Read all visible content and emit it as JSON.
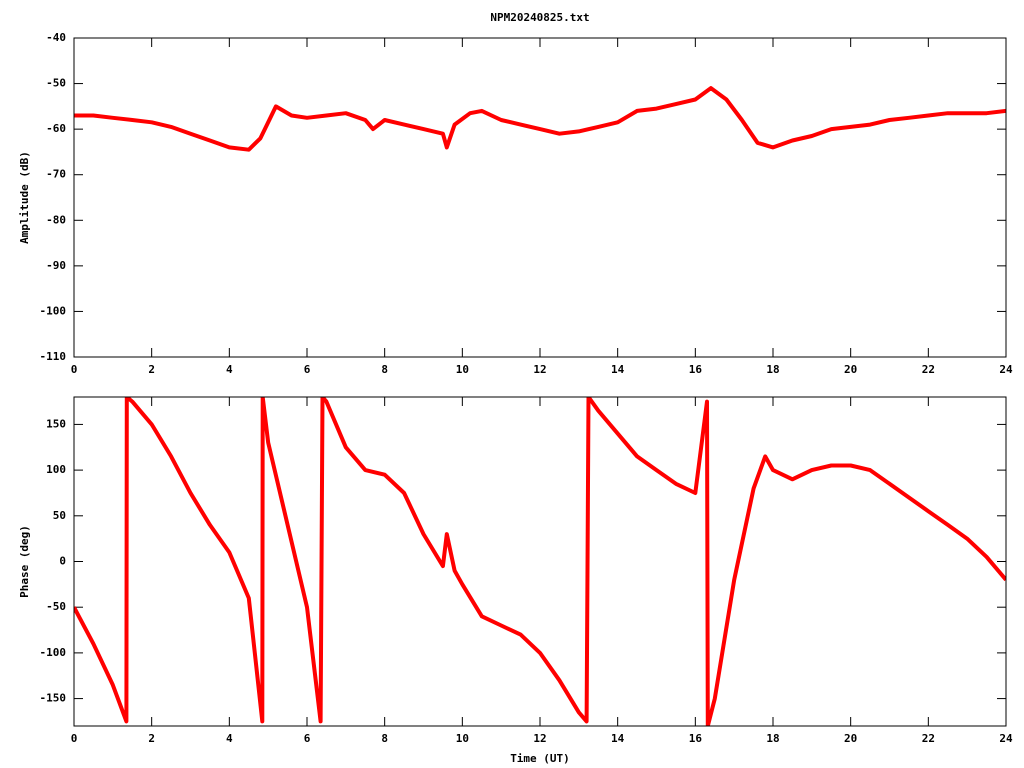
{
  "chart_data": [
    {
      "type": "line",
      "title": "NPM20240825.txt",
      "y_label": "Amplitude (dB)",
      "color": "#ff0000",
      "x": [
        0,
        0.5,
        1,
        1.5,
        2,
        2.5,
        3,
        3.5,
        4,
        4.5,
        4.8,
        5.2,
        5.6,
        6,
        6.5,
        7,
        7.5,
        7.7,
        8,
        8.5,
        9,
        9.5,
        9.6,
        9.8,
        10.2,
        10.5,
        11,
        11.5,
        12,
        12.5,
        13,
        13.5,
        14,
        14.5,
        15,
        15.5,
        16,
        16.4,
        16.8,
        17.2,
        17.6,
        18,
        18.5,
        19,
        19.5,
        20,
        20.5,
        21,
        21.5,
        22,
        22.5,
        23,
        23.5,
        24
      ],
      "values": [
        -57,
        -57,
        -57.5,
        -58,
        -58.5,
        -59.5,
        -61,
        -62.5,
        -64,
        -64.5,
        -62,
        -55,
        -57,
        -57.5,
        -57,
        -56.5,
        -58,
        -60,
        -58,
        -59,
        -60,
        -61,
        -64,
        -59,
        -56.5,
        -56,
        -58,
        -59,
        -60,
        -61,
        -60.5,
        -59.5,
        -58.5,
        -56,
        -55.5,
        -54.5,
        -53.5,
        -51,
        -53.5,
        -58,
        -63,
        -64,
        -62.5,
        -61.5,
        -60,
        -59.5,
        -59,
        -58,
        -57.5,
        -57,
        -56.5,
        -56.5,
        -56.5,
        -56
      ],
      "xlim": [
        0,
        24
      ],
      "xticks": [
        0,
        2,
        4,
        6,
        8,
        10,
        12,
        14,
        16,
        18,
        20,
        22,
        24
      ],
      "ylim": [
        -110,
        -40
      ],
      "yticks": [
        -110,
        -100,
        -90,
        -80,
        -70,
        -60,
        -50,
        -40
      ],
      "grid": false
    },
    {
      "type": "line",
      "y_label": "Phase (deg)",
      "x_label": "Time (UT)",
      "color": "#ff0000",
      "x": [
        0,
        0.5,
        1,
        1.35,
        1.36,
        1.5,
        2,
        2.5,
        3,
        3.5,
        4,
        4.5,
        4.85,
        4.86,
        5,
        5.5,
        6,
        6.35,
        6.4,
        6.5,
        7,
        7.5,
        8,
        8.5,
        9,
        9.5,
        9.6,
        9.8,
        10,
        10.5,
        11,
        11.5,
        12,
        12.5,
        13,
        13.2,
        13.25,
        13.5,
        14,
        14.5,
        15,
        15.5,
        16,
        16.3,
        16.32,
        16.5,
        17,
        17.5,
        17.8,
        18,
        18.5,
        19,
        19.5,
        20,
        20.5,
        21,
        21.5,
        22,
        22.5,
        23,
        23.5,
        24
      ],
      "values": [
        -50,
        -90,
        -135,
        -175,
        180,
        175,
        150,
        115,
        75,
        40,
        10,
        -40,
        -175,
        180,
        130,
        40,
        -50,
        -175,
        180,
        175,
        125,
        100,
        95,
        75,
        30,
        -5,
        30,
        -10,
        -25,
        -60,
        -70,
        -80,
        -100,
        -130,
        -165,
        -175,
        180,
        165,
        140,
        115,
        100,
        85,
        75,
        175,
        -180,
        -150,
        -20,
        80,
        115,
        100,
        90,
        100,
        105,
        105,
        100,
        85,
        70,
        55,
        40,
        25,
        5,
        -20
      ],
      "xlim": [
        0,
        24
      ],
      "xticks": [
        0,
        2,
        4,
        6,
        8,
        10,
        12,
        14,
        16,
        18,
        20,
        22,
        24
      ],
      "ylim": [
        -180,
        180
      ],
      "yticks": [
        -150,
        -100,
        -50,
        0,
        50,
        100,
        150
      ],
      "grid": false
    }
  ]
}
